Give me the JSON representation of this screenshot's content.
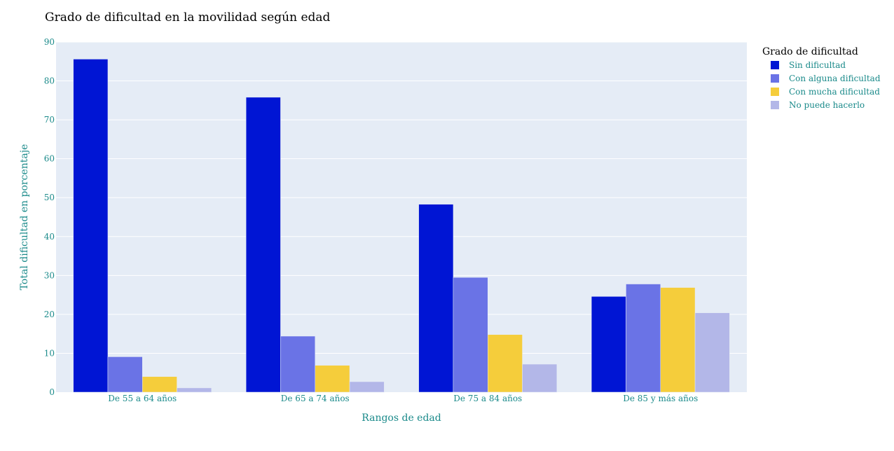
{
  "chart_data": {
    "type": "bar",
    "title": "Grado de dificultad en la movilidad según edad",
    "xlabel": "Rangos de edad",
    "ylabel": "Total dificultad en porcentaje",
    "categories": [
      "De 55 a 64 años",
      "De 65 a 74 años",
      "De 75 a 84 años",
      "De 85 y más años"
    ],
    "ylim": [
      0,
      90
    ],
    "yticks": [
      0,
      10,
      20,
      30,
      40,
      50,
      60,
      70,
      80,
      90
    ],
    "grid": true,
    "legend": {
      "title": "Grado de dificultad",
      "placement": "top-right"
    },
    "plot_background": "#e5ecf6",
    "series": [
      {
        "name": "Sin dificultad",
        "color": "#0015d4",
        "values": [
          85.6,
          75.8,
          48.3,
          24.6
        ]
      },
      {
        "name": "Con alguna dificultad",
        "color": "#6a73e6",
        "values": [
          9.1,
          14.4,
          29.5,
          27.8
        ]
      },
      {
        "name": "Con mucha dificultad",
        "color": "#f5cd3b",
        "values": [
          4.0,
          6.9,
          14.8,
          26.9
        ]
      },
      {
        "name": "No puede hacerlo",
        "color": "#b3b7e8",
        "values": [
          1.1,
          2.7,
          7.2,
          20.4
        ]
      }
    ]
  }
}
